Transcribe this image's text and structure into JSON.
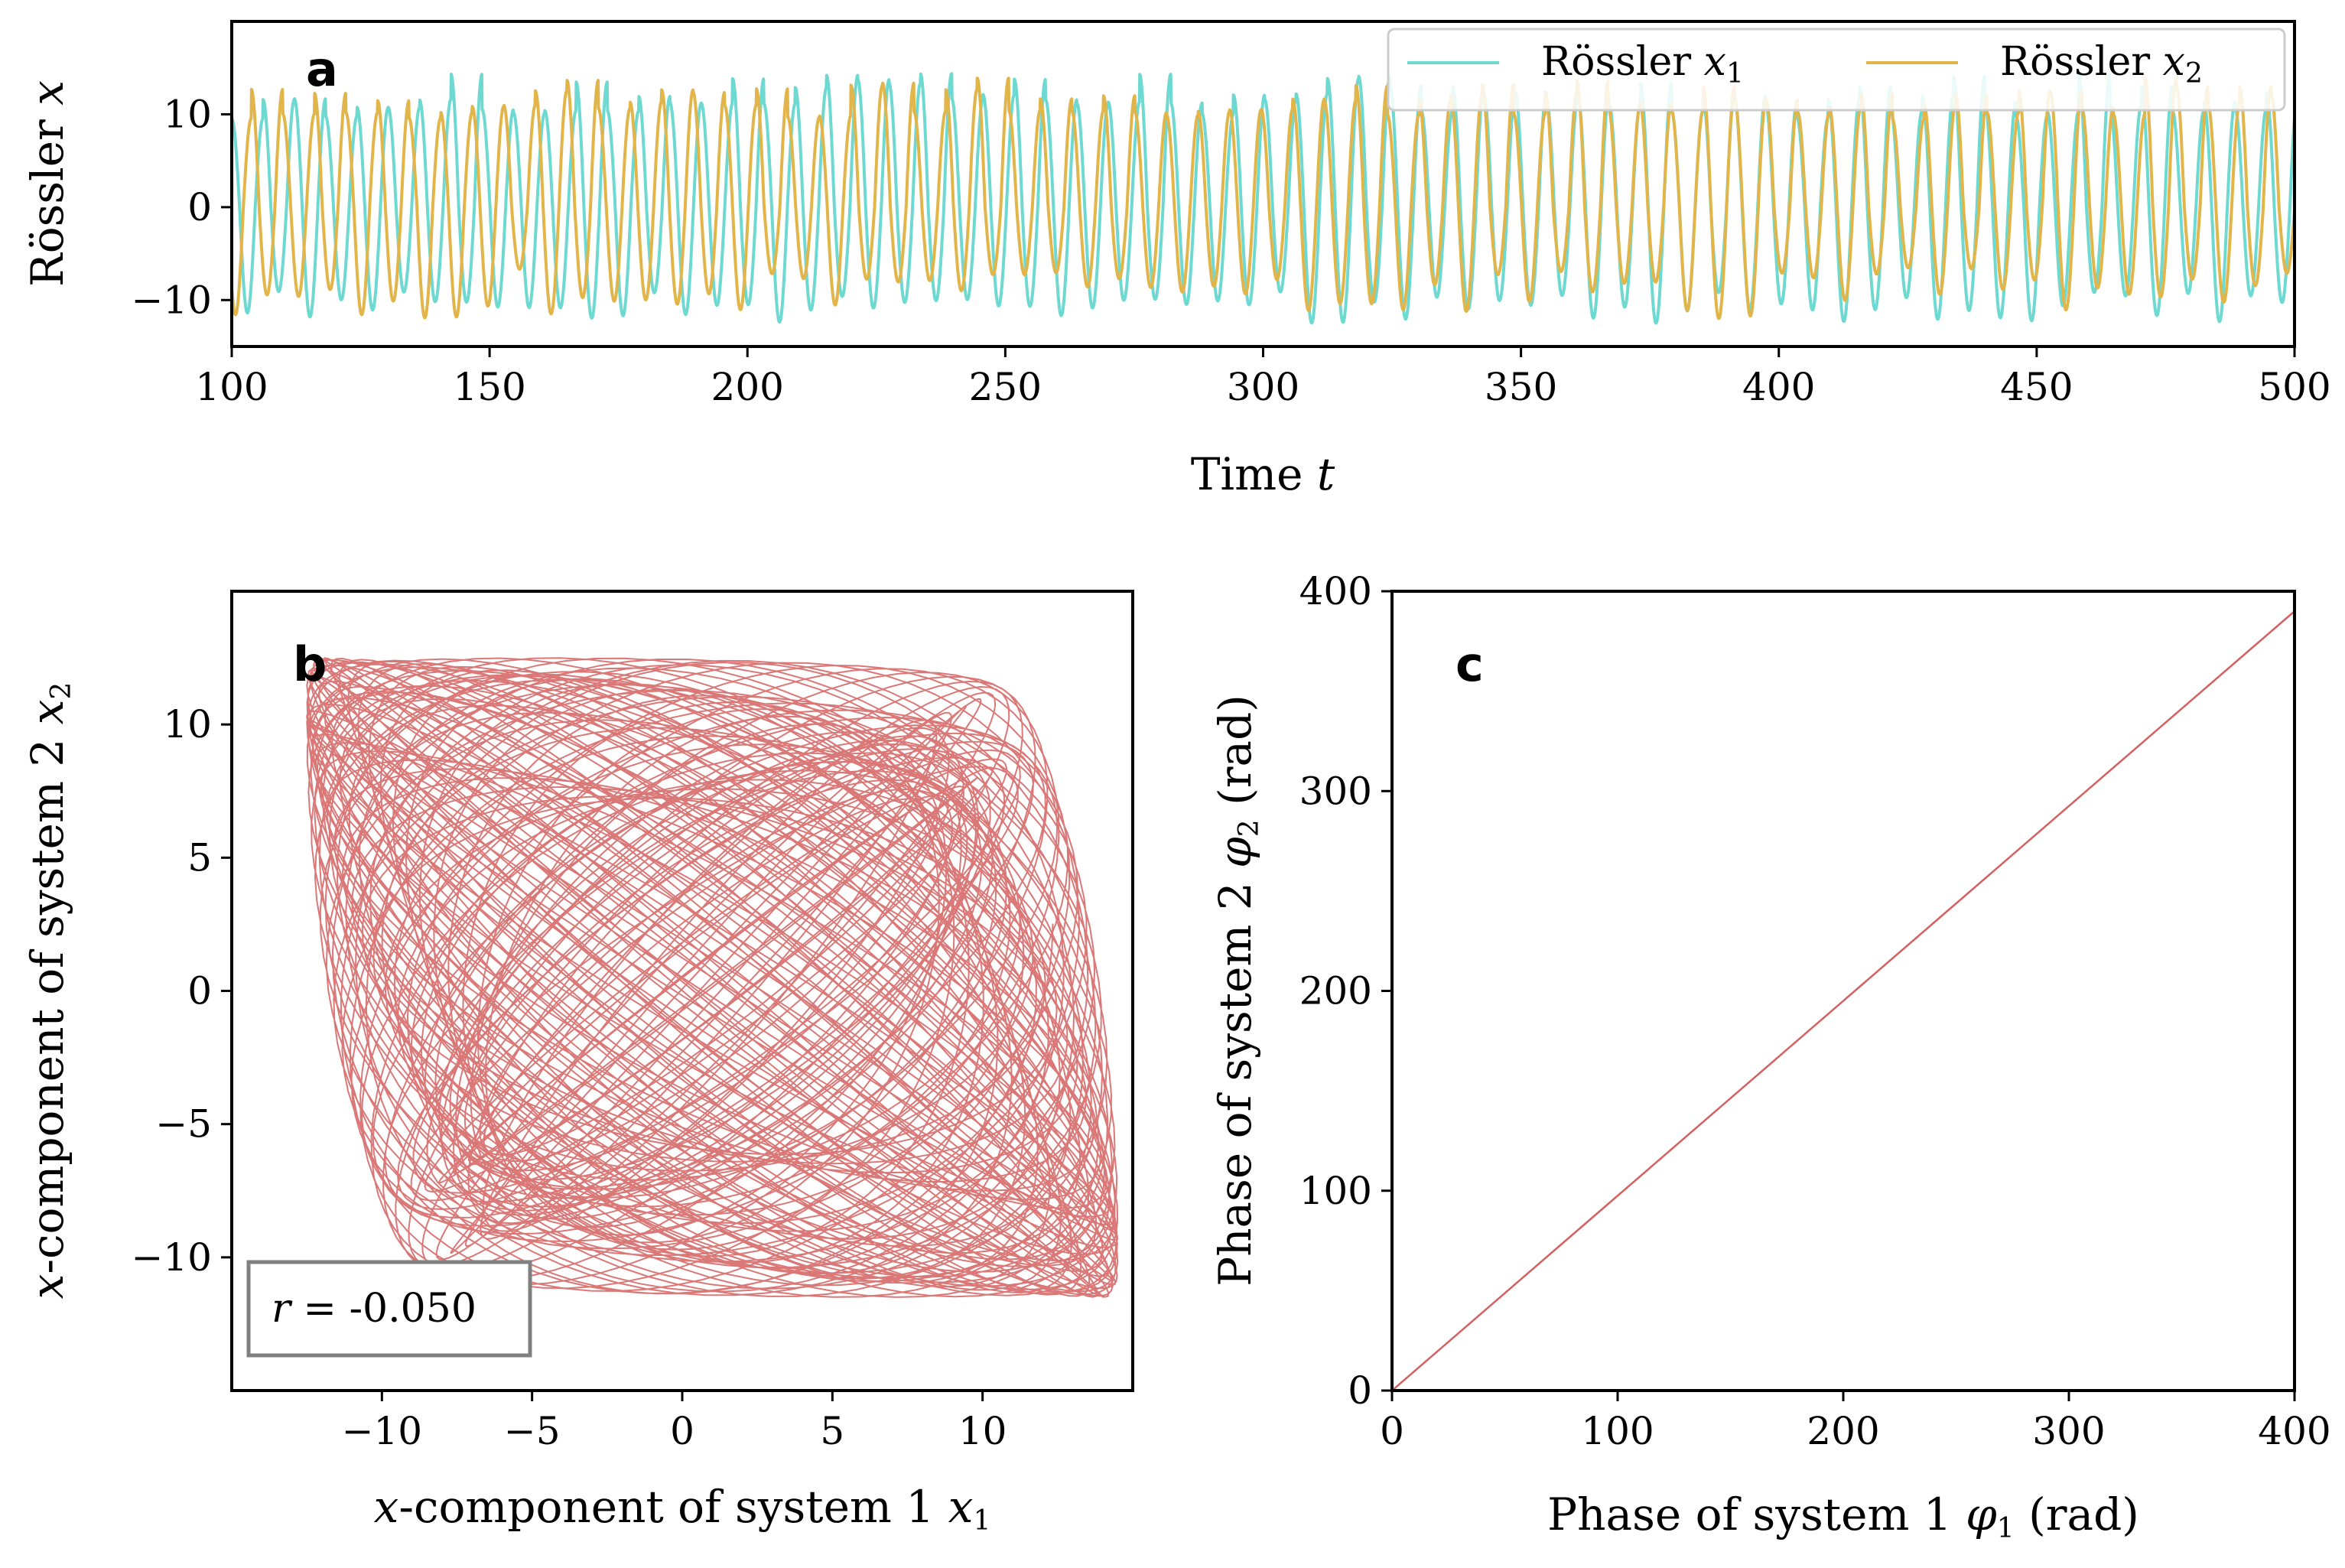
{
  "colors": {
    "x1": "#6ED9D0",
    "x2": "#E2B54A",
    "trajectory": "#D46060",
    "axes": "#000000",
    "annotation_box": "#808080"
  },
  "chart_data": [
    {
      "id": "a",
      "panel_label": "a",
      "type": "line",
      "xlabel": "Time t",
      "xlabel_parts": {
        "text": "Time ",
        "var": "t"
      },
      "ylabel": "Rössler x",
      "ylabel_parts": {
        "text": "Rössler ",
        "var": "x"
      },
      "xlim": [
        100,
        500
      ],
      "ylim": [
        -15,
        20
      ],
      "xticks": [
        100,
        150,
        200,
        250,
        300,
        350,
        400,
        450,
        500
      ],
      "xtick_labels": [
        "100",
        "150",
        "200",
        "250",
        "300",
        "350",
        "400",
        "450",
        "500"
      ],
      "yticks": [
        -10,
        0,
        10
      ],
      "ytick_labels": [
        "−10",
        "0",
        "10"
      ],
      "legend_position": "top-right",
      "series": [
        {
          "name": "Rössler x1",
          "label_text": "Rössler ",
          "label_var": "x",
          "label_sub": "1",
          "color": "#6ED9D0",
          "period": 6.07,
          "phase": 0.0,
          "amp_min": 9.5,
          "amp_max": 14.5,
          "trough_min": -12.5,
          "trough_max": -9.0
        },
        {
          "name": "Rössler x2",
          "label_text": "Rössler ",
          "label_var": "x",
          "label_sub": "2",
          "color": "#E2B54A",
          "period": 6.12,
          "phase": 2.4,
          "amp_min": 9.5,
          "amp_max": 14.0,
          "trough_min": -12.0,
          "trough_max": -6.5
        }
      ]
    },
    {
      "id": "b",
      "panel_label": "b",
      "type": "line",
      "xlabel": "x-component of system 1 x1",
      "xlabel_parts": {
        "var1": "x",
        "text": "-component of system 1 ",
        "var2": "x",
        "sub": "1"
      },
      "ylabel": "x-component of system 2 x2",
      "ylabel_parts": {
        "var1": "x",
        "text": "-component of system 2 ",
        "var2": "x",
        "sub": "2"
      },
      "xlim": [
        -15,
        15
      ],
      "ylim": [
        -15,
        15
      ],
      "xticks": [
        -10,
        -5,
        0,
        5,
        10
      ],
      "xtick_labels": [
        "−10",
        "−5",
        "0",
        "5",
        "10"
      ],
      "yticks": [
        -10,
        -5,
        0,
        5,
        10
      ],
      "ytick_labels": [
        "−10",
        "−5",
        "0",
        "5",
        "10"
      ],
      "annotation": {
        "var": "r",
        "text": " = -0.050",
        "value": -0.05,
        "position": "bottom-left"
      },
      "x_range": [
        -12.5,
        14.5
      ],
      "y_range": [
        -11.5,
        12.5
      ]
    },
    {
      "id": "c",
      "panel_label": "c",
      "type": "line",
      "xlabel": "Phase of system 1 φ1 (rad)",
      "xlabel_parts": {
        "text": "Phase of system 1 ",
        "var": "φ",
        "sub": "1",
        "tail": " (rad)"
      },
      "ylabel": "Phase of system 2 φ2 (rad)",
      "ylabel_parts": {
        "text": "Phase of system 2 ",
        "var": "φ",
        "sub": "2",
        "tail": " (rad)"
      },
      "xlim": [
        0,
        400
      ],
      "ylim": [
        0,
        400
      ],
      "xticks": [
        0,
        100,
        200,
        300,
        400
      ],
      "xtick_labels": [
        "0",
        "100",
        "200",
        "300",
        "400"
      ],
      "yticks": [
        0,
        100,
        200,
        300,
        400
      ],
      "ytick_labels": [
        "0",
        "100",
        "200",
        "300",
        "400"
      ],
      "x": [
        0,
        400
      ],
      "y": [
        0,
        390
      ]
    }
  ]
}
